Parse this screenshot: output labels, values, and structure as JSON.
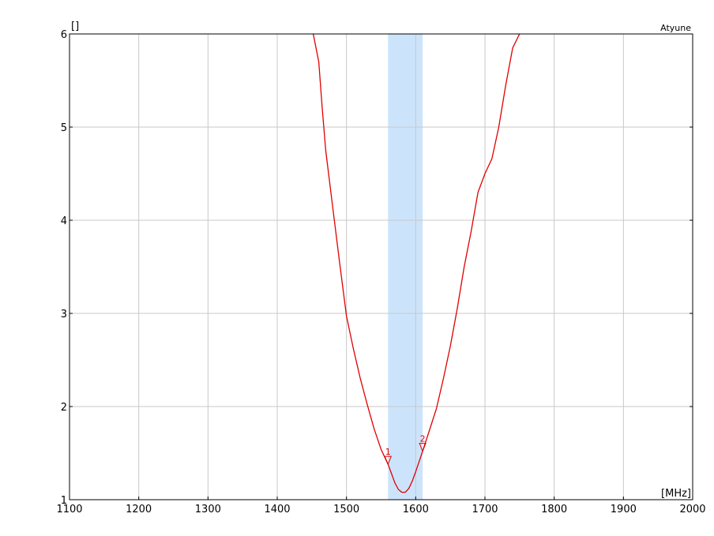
{
  "chart_data": {
    "type": "line",
    "title": "",
    "trace_name": "Atyune",
    "xlabel": "",
    "ylabel": "",
    "x_unit": "[MHz]",
    "y_unit": "[]",
    "xlim": [
      1100,
      2000
    ],
    "ylim": [
      1,
      6
    ],
    "xticks": [
      "1100",
      "1200",
      "1300",
      "1400",
      "1500",
      "1600",
      "1700",
      "1800",
      "1900",
      "2000"
    ],
    "yticks": [
      "1",
      "2",
      "3",
      "4",
      "5",
      "6"
    ],
    "grid": true,
    "band_highlight": {
      "x_start": 1560,
      "x_end": 1610,
      "color": "#cce4fb"
    },
    "series": [
      {
        "color": "#e00000",
        "x": [
          1452,
          1460,
          1465,
          1470,
          1480,
          1490,
          1500,
          1510,
          1520,
          1530,
          1540,
          1550,
          1560,
          1565,
          1570,
          1575,
          1580,
          1585,
          1590,
          1595,
          1600,
          1605,
          1610,
          1620,
          1630,
          1640,
          1650,
          1660,
          1670,
          1680,
          1690,
          1700,
          1710,
          1720,
          1730,
          1740,
          1750
        ],
        "y": [
          6.0,
          5.7,
          5.2,
          4.75,
          4.15,
          3.55,
          2.97,
          2.62,
          2.3,
          2.02,
          1.76,
          1.54,
          1.38,
          1.28,
          1.18,
          1.11,
          1.08,
          1.08,
          1.12,
          1.2,
          1.3,
          1.41,
          1.52,
          1.75,
          1.98,
          2.3,
          2.65,
          3.05,
          3.5,
          3.88,
          4.3,
          4.5,
          4.66,
          5.0,
          5.45,
          5.85,
          6.0
        ]
      }
    ],
    "markers": [
      {
        "label": "1",
        "x": 1560,
        "y": 1.38
      },
      {
        "label": "2",
        "x": 1610,
        "y": 1.52
      }
    ]
  }
}
